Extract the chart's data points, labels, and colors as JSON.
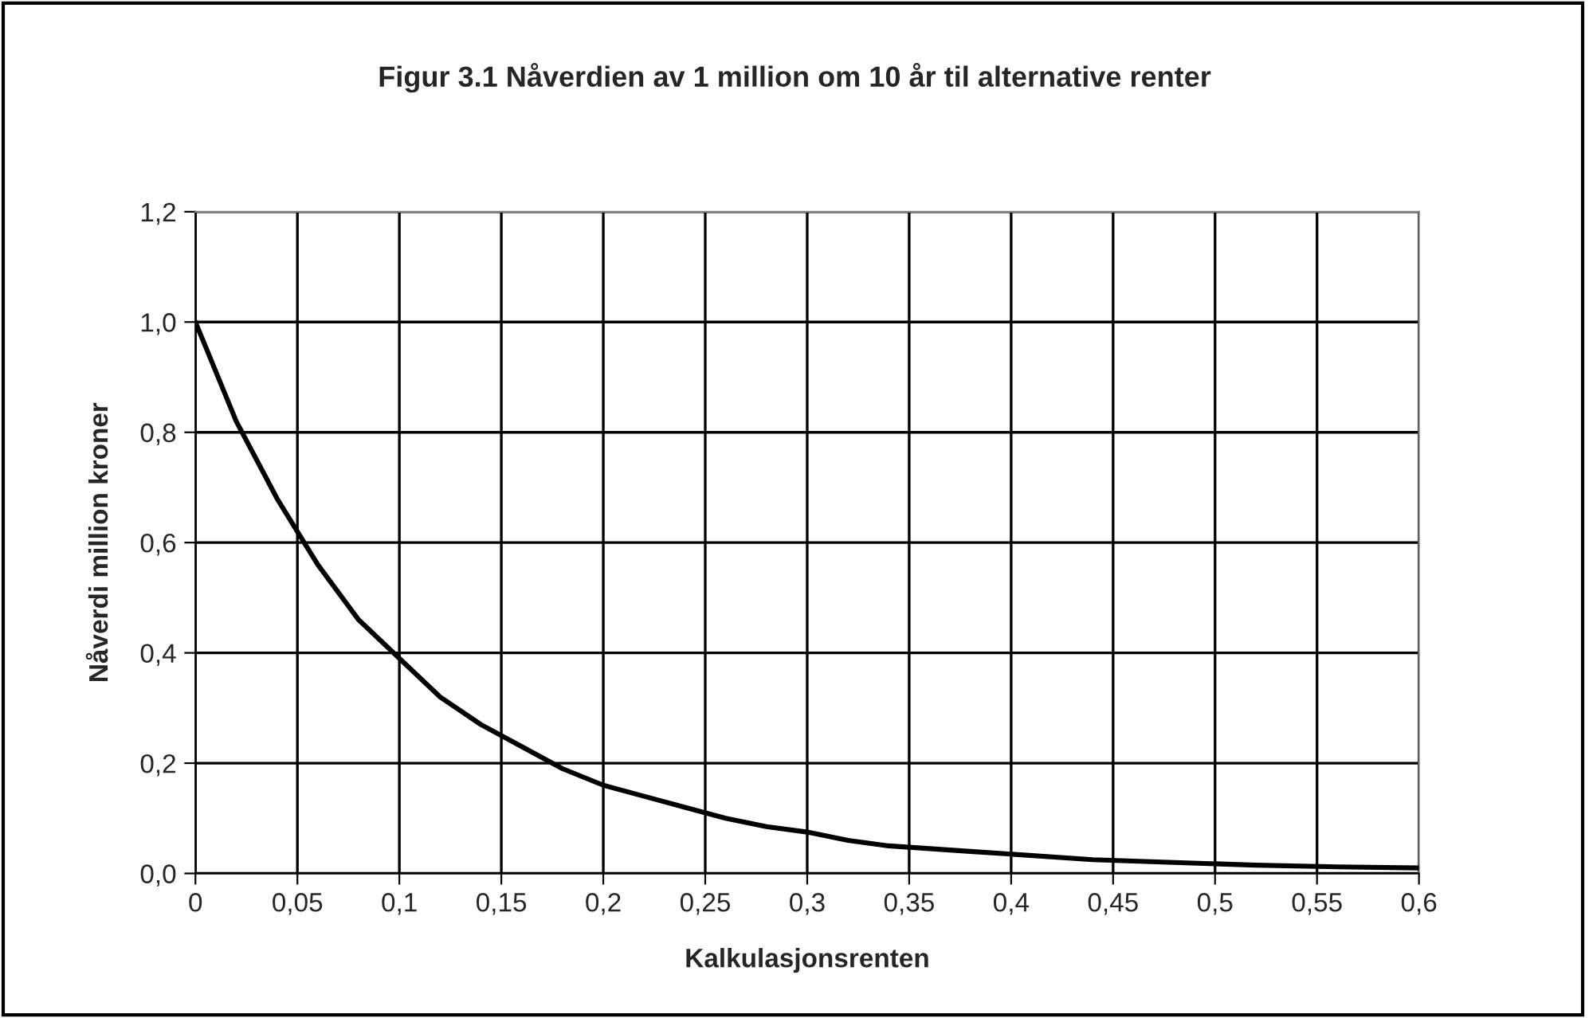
{
  "chart_data": {
    "type": "line",
    "title": "Figur 3.1 Nåverdien av 1 million om 10 år til alternative renter",
    "xlabel": "Kalkulasjonsrenten",
    "ylabel": "Nåverdi million kroner",
    "x": [
      0,
      0.02,
      0.04,
      0.06,
      0.08,
      0.1,
      0.12,
      0.14,
      0.16,
      0.18,
      0.2,
      0.22,
      0.24,
      0.26,
      0.28,
      0.3,
      0.32,
      0.34,
      0.36,
      0.38,
      0.4,
      0.44,
      0.48,
      0.52,
      0.56,
      0.6
    ],
    "series": [
      {
        "color": "#000000",
        "values": [
          1.0,
          0.82,
          0.68,
          0.56,
          0.46,
          0.39,
          0.32,
          0.27,
          0.23,
          0.19,
          0.16,
          0.14,
          0.12,
          0.1,
          0.085,
          0.075,
          0.06,
          0.05,
          0.045,
          0.04,
          0.035,
          0.025,
          0.02,
          0.015,
          0.012,
          0.01
        ]
      }
    ],
    "xlim": [
      0,
      0.6
    ],
    "xticks": [
      0,
      {
        "value": 0.05,
        "label": "0,05"
      },
      {
        "value": 0.1,
        "label": "0,1"
      },
      {
        "value": 0.15,
        "label": "0,15"
      },
      {
        "value": 0.2,
        "label": "0,2"
      },
      {
        "value": 0.25,
        "label": "0,25"
      },
      {
        "value": 0.3,
        "label": "0,3"
      },
      {
        "value": 0.35,
        "label": "0,35"
      },
      {
        "value": 0.4,
        "label": "0,4"
      },
      {
        "value": 0.45,
        "label": "0,45"
      },
      {
        "value": 0.5,
        "label": "0,5"
      },
      {
        "value": 0.55,
        "label": "0,55"
      },
      {
        "value": 0.6,
        "label": "0,6"
      }
    ],
    "ylim": [
      0,
      1.2
    ],
    "yticks": [
      {
        "value": 0,
        "label": "0,0"
      },
      {
        "value": 0.2,
        "label": "0,2"
      },
      {
        "value": 0.4,
        "label": "0,4"
      },
      {
        "value": 0.6,
        "label": "0,6"
      },
      {
        "value": 0.8,
        "label": "0,8"
      },
      {
        "value": 1.0,
        "label": "1,0"
      },
      {
        "value": 1.2,
        "label": "1,2"
      }
    ],
    "grid": true,
    "legend": false,
    "marker": "none",
    "line_style": "solid"
  }
}
